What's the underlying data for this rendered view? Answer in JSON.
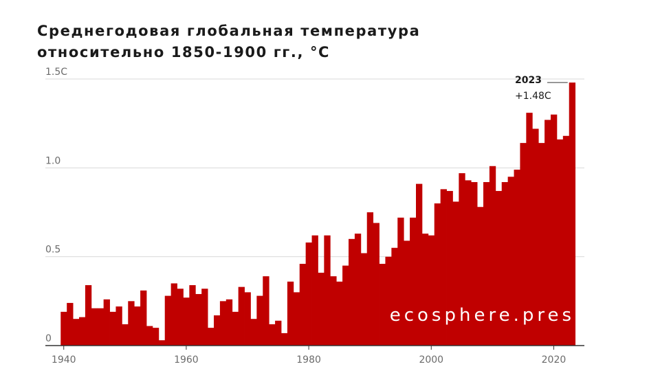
{
  "title_line1": "Среднегодовая глобальная температура",
  "title_line2": "относительно 1850-1900 гг., °C",
  "watermark": "ecosphere.pres",
  "colors": {
    "bar": "#c00000",
    "grid": "#d9d9d9",
    "axis": "#333333",
    "text": "#6b6b6b"
  },
  "chart_data": {
    "type": "bar",
    "title": "Среднегодовая глобальная температура относительно 1850-1900 гг., °C",
    "xlabel": "",
    "ylabel": "",
    "xlim": [
      1937,
      2025
    ],
    "ylim": [
      0,
      1.5
    ],
    "grid": true,
    "y_ticks": [
      {
        "value": 0,
        "label": "0"
      },
      {
        "value": 0.5,
        "label": "0.5"
      },
      {
        "value": 1.0,
        "label": "1.0"
      },
      {
        "value": 1.5,
        "label": "1.5C"
      }
    ],
    "x_ticks": [
      {
        "value": 1940,
        "label": "1940"
      },
      {
        "value": 1960,
        "label": "1960"
      },
      {
        "value": 1980,
        "label": "1980"
      },
      {
        "value": 2000,
        "label": "2000"
      },
      {
        "value": 2020,
        "label": "2020"
      }
    ],
    "annotation": {
      "year": 2023,
      "label_year": "2023",
      "label_value": "+1.48C",
      "value": 1.48
    },
    "years": [
      1940,
      1941,
      1942,
      1943,
      1944,
      1945,
      1946,
      1947,
      1948,
      1949,
      1950,
      1951,
      1952,
      1953,
      1954,
      1955,
      1956,
      1957,
      1958,
      1959,
      1960,
      1961,
      1962,
      1963,
      1964,
      1965,
      1966,
      1967,
      1968,
      1969,
      1970,
      1971,
      1972,
      1973,
      1974,
      1975,
      1976,
      1977,
      1978,
      1979,
      1980,
      1981,
      1982,
      1983,
      1984,
      1985,
      1986,
      1987,
      1988,
      1989,
      1990,
      1991,
      1992,
      1993,
      1994,
      1995,
      1996,
      1997,
      1998,
      1999,
      2000,
      2001,
      2002,
      2003,
      2004,
      2005,
      2006,
      2007,
      2008,
      2009,
      2010,
      2011,
      2012,
      2013,
      2014,
      2015,
      2016,
      2017,
      2018,
      2019,
      2020,
      2021,
      2022,
      2023
    ],
    "values": [
      0.19,
      0.24,
      0.15,
      0.16,
      0.34,
      0.21,
      0.21,
      0.26,
      0.19,
      0.22,
      0.12,
      0.25,
      0.22,
      0.31,
      0.11,
      0.1,
      0.03,
      0.28,
      0.35,
      0.32,
      0.27,
      0.34,
      0.29,
      0.32,
      0.1,
      0.17,
      0.25,
      0.26,
      0.19,
      0.33,
      0.3,
      0.15,
      0.28,
      0.39,
      0.12,
      0.14,
      0.07,
      0.36,
      0.3,
      0.46,
      0.58,
      0.62,
      0.41,
      0.62,
      0.39,
      0.36,
      0.45,
      0.6,
      0.63,
      0.52,
      0.75,
      0.69,
      0.46,
      0.5,
      0.55,
      0.72,
      0.59,
      0.72,
      0.91,
      0.63,
      0.62,
      0.8,
      0.88,
      0.87,
      0.81,
      0.97,
      0.93,
      0.92,
      0.78,
      0.92,
      1.01,
      0.87,
      0.92,
      0.95,
      0.99,
      1.14,
      1.31,
      1.22,
      1.14,
      1.27,
      1.3,
      1.16,
      1.18,
      1.48
    ]
  }
}
